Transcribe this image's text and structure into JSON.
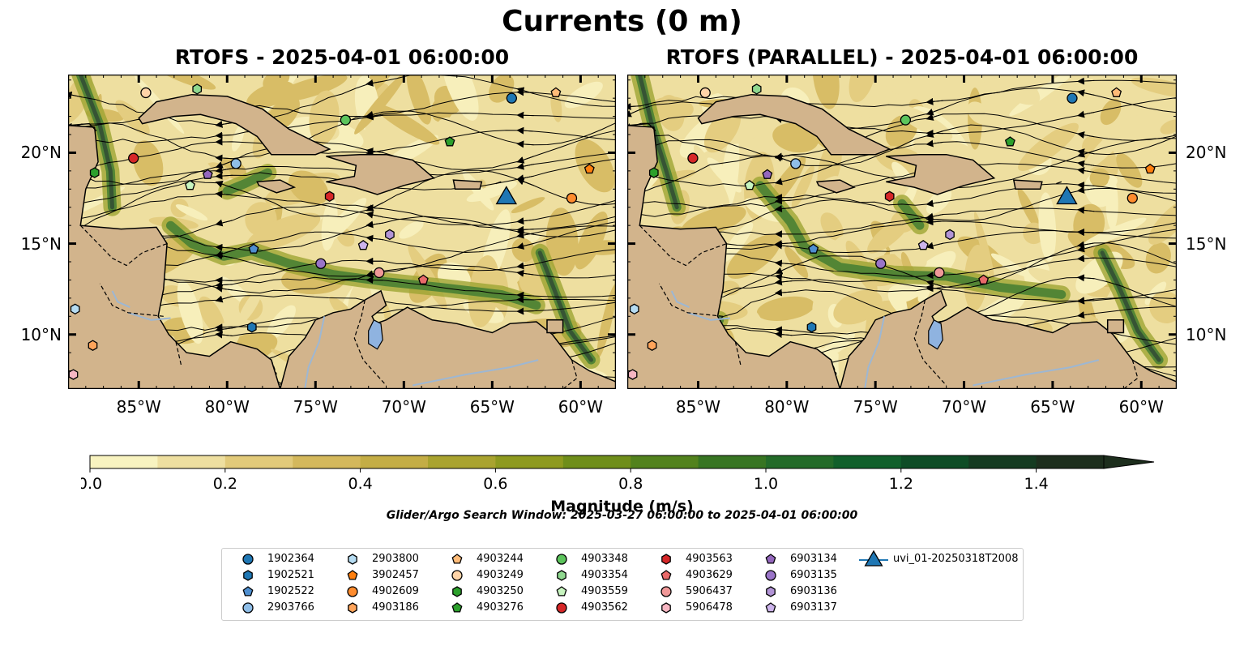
{
  "title": "Currents (0 m)",
  "panels": [
    {
      "title": "RTOFS - 2025-04-01 06:00:00"
    },
    {
      "title": "RTOFS (PARALLEL) - 2025-04-01 06:00:00"
    }
  ],
  "map_extent": {
    "lon": [
      -89,
      -58
    ],
    "lat": [
      7,
      24.3
    ]
  },
  "x_ticks": [
    {
      "value": -85,
      "label": "85°W"
    },
    {
      "value": -80,
      "label": "80°W"
    },
    {
      "value": -75,
      "label": "75°W"
    },
    {
      "value": -70,
      "label": "70°W"
    },
    {
      "value": -65,
      "label": "65°W"
    },
    {
      "value": -60,
      "label": "60°W"
    }
  ],
  "y_ticks": [
    {
      "value": 10,
      "label": "10°N"
    },
    {
      "value": 15,
      "label": "15°N"
    },
    {
      "value": 20,
      "label": "20°N"
    }
  ],
  "colorbar": {
    "label": "Magnitude (m/s)",
    "min": 0,
    "max": 1.5,
    "extend": "max",
    "ticks": [
      "0.0",
      "0.2",
      "0.4",
      "0.6",
      "0.8",
      "1.0",
      "1.2",
      "1.4"
    ],
    "colors": [
      "#f8f3c0",
      "#eedfa0",
      "#e2ca7a",
      "#d4b85c",
      "#c4ad45",
      "#a9a32f",
      "#8e9a1f",
      "#6f8e1a",
      "#52821d",
      "#377522",
      "#236b29",
      "#11602b",
      "#0e4d26",
      "#153b21",
      "#1d2e1d"
    ]
  },
  "colors": {
    "land": "#d2b48c",
    "coast": "#000000",
    "lakes": "#8fb3e0",
    "rivers": "#9db7d3"
  },
  "search_window": "Glider/Argo Search Window: 2025-03-27 06:00:00 to 2025-04-01 06:00:00",
  "legend": [
    {
      "id": "1902364",
      "marker": "circle",
      "color": "#1f77b4"
    },
    {
      "id": "1902521",
      "marker": "hexagon",
      "color": "#1f77b4"
    },
    {
      "id": "1902522",
      "marker": "pentagon",
      "color": "#4f8fd0"
    },
    {
      "id": "2903766",
      "marker": "circle",
      "color": "#8fbee8"
    },
    {
      "id": "2903800",
      "marker": "hexagon",
      "color": "#b6dcf2"
    },
    {
      "id": "3902457",
      "marker": "pentagon",
      "color": "#ff7f0e"
    },
    {
      "id": "4902609",
      "marker": "circle",
      "color": "#ff8c2e"
    },
    {
      "id": "4903186",
      "marker": "hexagon",
      "color": "#ffa45a"
    },
    {
      "id": "4903244",
      "marker": "pentagon",
      "color": "#ffbb78"
    },
    {
      "id": "4903249",
      "marker": "circle",
      "color": "#ffd4a8"
    },
    {
      "id": "4903250",
      "marker": "hexagon",
      "color": "#2ca02c"
    },
    {
      "id": "4903276",
      "marker": "pentagon",
      "color": "#2ca02c"
    },
    {
      "id": "4903348",
      "marker": "circle",
      "color": "#5cc45c"
    },
    {
      "id": "4903354",
      "marker": "hexagon",
      "color": "#8fd88f"
    },
    {
      "id": "4903559",
      "marker": "pentagon",
      "color": "#c8f5c0"
    },
    {
      "id": "4903562",
      "marker": "circle",
      "color": "#d62728"
    },
    {
      "id": "4903563",
      "marker": "hexagon",
      "color": "#d62728"
    },
    {
      "id": "4903629",
      "marker": "pentagon",
      "color": "#e96a6a"
    },
    {
      "id": "5906437",
      "marker": "circle",
      "color": "#f09898"
    },
    {
      "id": "5906478",
      "marker": "hexagon",
      "color": "#f7b6c2"
    },
    {
      "id": "6903134",
      "marker": "pentagon",
      "color": "#9467bd"
    },
    {
      "id": "6903135",
      "marker": "circle",
      "color": "#9a74c8"
    },
    {
      "id": "6903136",
      "marker": "hexagon",
      "color": "#b294d6"
    },
    {
      "id": "6903137",
      "marker": "pentagon",
      "color": "#cdb4ec"
    },
    {
      "id": "uvi_01-20250318T2008",
      "marker": "triangle",
      "color": "#1f77b4"
    }
  ],
  "floats": [
    {
      "id": "1902364",
      "lon": -63.9,
      "lat": 23.0
    },
    {
      "id": "1902521",
      "lon": -78.6,
      "lat": 10.4
    },
    {
      "id": "1902522",
      "lon": -78.5,
      "lat": 14.7
    },
    {
      "id": "2903766",
      "lon": -79.5,
      "lat": 19.4
    },
    {
      "id": "2903800",
      "lon": -88.6,
      "lat": 11.4
    },
    {
      "id": "3902457",
      "lon": -59.5,
      "lat": 19.1
    },
    {
      "id": "4902609",
      "lon": -60.5,
      "lat": 17.5
    },
    {
      "id": "4903186",
      "lon": -87.6,
      "lat": 9.4
    },
    {
      "id": "4903244",
      "lon": -61.4,
      "lat": 23.3
    },
    {
      "id": "4903249",
      "lon": -84.6,
      "lat": 23.3
    },
    {
      "id": "4903250",
      "lon": -87.5,
      "lat": 18.9
    },
    {
      "id": "4903276",
      "lon": -67.4,
      "lat": 20.6
    },
    {
      "id": "4903348",
      "lon": -73.3,
      "lat": 21.8
    },
    {
      "id": "4903354",
      "lon": -81.7,
      "lat": 23.5
    },
    {
      "id": "4903559",
      "lon": -82.1,
      "lat": 18.2
    },
    {
      "id": "4903562",
      "lon": -85.3,
      "lat": 19.7
    },
    {
      "id": "4903563",
      "lon": -74.2,
      "lat": 17.6
    },
    {
      "id": "4903629",
      "lon": -68.9,
      "lat": 13.0
    },
    {
      "id": "5906437",
      "lon": -71.4,
      "lat": 13.4
    },
    {
      "id": "5906478",
      "lon": -88.7,
      "lat": 7.8
    },
    {
      "id": "6903134",
      "lon": -81.1,
      "lat": 18.8
    },
    {
      "id": "6903135",
      "lon": -74.7,
      "lat": 13.9
    },
    {
      "id": "6903136",
      "lon": -70.8,
      "lat": 15.5
    },
    {
      "id": "6903137",
      "lon": -72.3,
      "lat": 14.9
    }
  ],
  "glider": {
    "id": "uvi_01-20250318T2008",
    "lon": -64.2,
    "lat": 17.5
  }
}
